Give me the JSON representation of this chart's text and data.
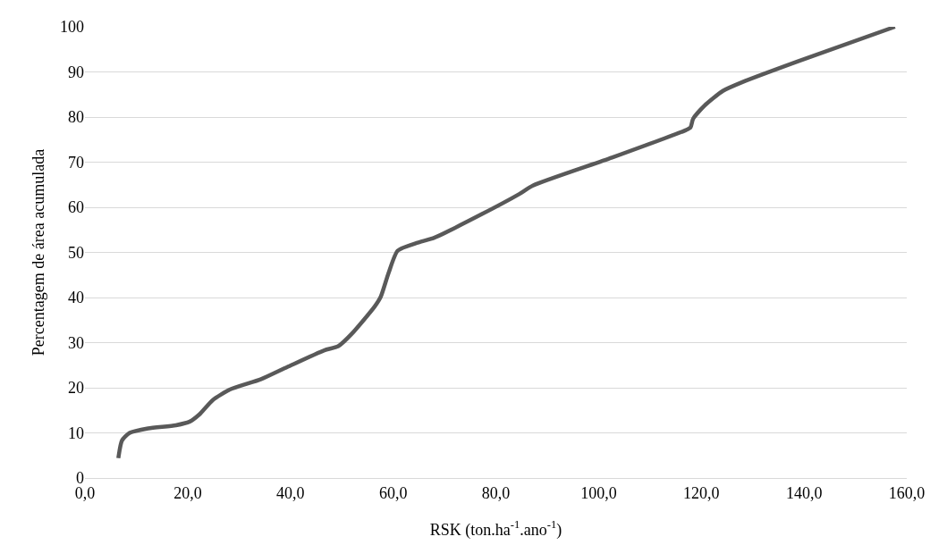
{
  "chart_data": {
    "type": "line",
    "xlabel": "RSK (ton.ha$^{-1}$.ano$^{-1}$)",
    "ylabel": "Percentagem de área acumulada",
    "x": [
      6.5,
      7.2,
      8.7,
      12.3,
      17.7,
      20.4,
      22.2,
      24.9,
      28.2,
      34.3,
      39.4,
      46.6,
      49.3,
      51.9,
      56.4,
      57.6,
      59.1,
      60.9,
      64.6,
      68.1,
      77.3,
      84.5,
      87.2,
      102.6,
      117,
      117.9,
      118.4,
      120.6,
      124.2,
      127.9,
      138.7,
      157.7
    ],
    "series": [
      {
        "color": "#595959",
        "values": [
          4.4,
          8.3,
          10,
          11,
          11.7,
          12.5,
          14,
          17.3,
          19.6,
          21.9,
          24.6,
          28.3,
          29.2,
          31.9,
          38,
          40.2,
          45.4,
          50.4,
          52.1,
          53.3,
          58.5,
          62.9,
          64.8,
          71,
          77.1,
          77.7,
          79.6,
          82.5,
          85.8,
          87.7,
          92.3,
          100
        ]
      }
    ],
    "xlim": [
      0,
      160
    ],
    "xticks": [
      {
        "value": 0,
        "label": "0,0"
      },
      {
        "value": 20,
        "label": "20,0"
      },
      {
        "value": 40,
        "label": "40,0"
      },
      {
        "value": 60,
        "label": "60,0"
      },
      {
        "value": 80,
        "label": "80,0"
      },
      {
        "value": 100,
        "label": "100,0"
      },
      {
        "value": 120,
        "label": "120,0"
      },
      {
        "value": 140,
        "label": "140,0"
      },
      {
        "value": 160,
        "label": "160,0"
      }
    ],
    "ylim": [
      0,
      100
    ],
    "yticks": [
      0,
      10,
      20,
      30,
      40,
      50,
      60,
      70,
      80,
      90,
      100
    ],
    "grid": "y",
    "marker": "none",
    "line_style": "solid"
  }
}
